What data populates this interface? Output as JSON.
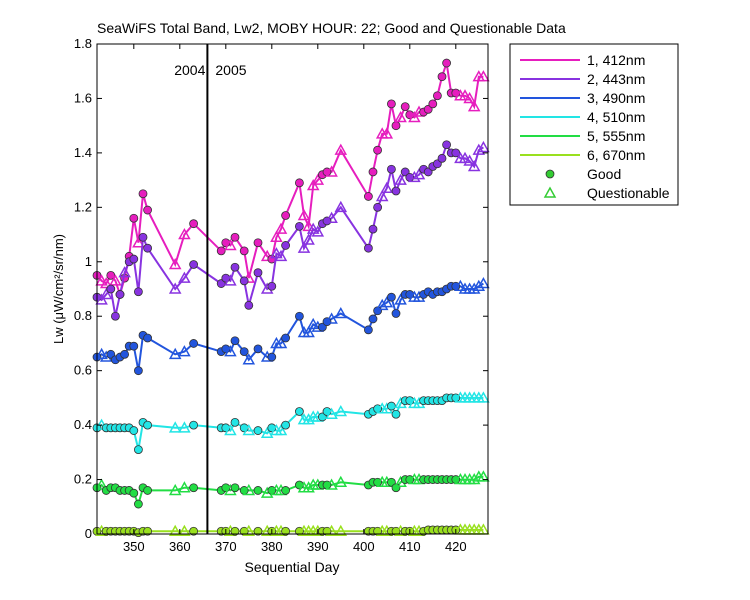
{
  "chart_data": {
    "type": "line",
    "title": "SeaWiFS Total Band,  Lw2, MOBY HOUR: 22;  Good and Questionable Data",
    "xlabel": "Sequential Day",
    "ylabel": "Lw (μW/cm²/sr/nm)",
    "xlim": [
      342,
      427
    ],
    "ylim": [
      0,
      1.8
    ],
    "xticks": [
      350,
      360,
      370,
      380,
      390,
      400,
      410,
      420
    ],
    "yticks": [
      0,
      0.2,
      0.4,
      0.6,
      0.8,
      1,
      1.2,
      1.4,
      1.6,
      1.8
    ],
    "ytick_labels": [
      "0",
      "0.2",
      "0.4",
      "0.6",
      "0.8",
      "1",
      "1.2",
      "1.4",
      "1.6",
      "1.8"
    ],
    "year_divider": {
      "x": 366,
      "left_label": "2004",
      "right_label": "2005"
    },
    "grid": false,
    "legend_position": "outside-right",
    "legend_markers": [
      {
        "label": "Good",
        "marker": "circle",
        "color": "#33cc33"
      },
      {
        "label": "Questionable",
        "marker": "triangle",
        "color": "#33cc33"
      }
    ],
    "series": [
      {
        "name": "1, 412nm",
        "color": "#e61ebe",
        "x": [
          342,
          343,
          344,
          345,
          346,
          347,
          348,
          349,
          350,
          351,
          352,
          353,
          359,
          361,
          363,
          369,
          370,
          371,
          372,
          374,
          375,
          377,
          379,
          380,
          381,
          382,
          383,
          386,
          387,
          388,
          389,
          390,
          391,
          392,
          393,
          395,
          401,
          402,
          403,
          404,
          405,
          406,
          407,
          408,
          409,
          410,
          411,
          412,
          413,
          414,
          415,
          416,
          417,
          418,
          419,
          420,
          421,
          422,
          423,
          424,
          425,
          426
        ],
        "y": [
          0.95,
          0.93,
          0.92,
          0.95,
          0.93,
          0.88,
          0.94,
          1.02,
          1.16,
          1.07,
          1.25,
          1.19,
          0.99,
          1.1,
          1.14,
          1.04,
          1.07,
          1.06,
          1.09,
          1.04,
          0.94,
          1.07,
          1.02,
          1.01,
          1.09,
          1.12,
          1.17,
          1.29,
          1.17,
          1.13,
          1.28,
          1.3,
          1.32,
          1.33,
          1.33,
          1.41,
          1.24,
          1.33,
          1.41,
          1.47,
          1.47,
          1.58,
          1.5,
          1.53,
          1.57,
          1.54,
          1.53,
          1.55,
          1.55,
          1.56,
          1.58,
          1.61,
          1.68,
          1.73,
          1.62,
          1.62,
          1.61,
          1.61,
          1.6,
          1.57,
          1.68,
          1.68
        ],
        "good": [
          true,
          false,
          false,
          true,
          false,
          true,
          true,
          true,
          true,
          false,
          true,
          true,
          false,
          false,
          true,
          true,
          true,
          false,
          true,
          true,
          false,
          true,
          false,
          true,
          false,
          false,
          true,
          true,
          false,
          false,
          false,
          false,
          true,
          true,
          false,
          false,
          true,
          true,
          true,
          false,
          false,
          true,
          true,
          false,
          true,
          true,
          false,
          false,
          true,
          true,
          true,
          true,
          true,
          true,
          true,
          true,
          false,
          false,
          false,
          false,
          false,
          false
        ]
      },
      {
        "name": "2, 443nm",
        "color": "#8833e0",
        "x": [
          342,
          343,
          344,
          345,
          346,
          347,
          348,
          349,
          350,
          351,
          352,
          353,
          359,
          361,
          363,
          369,
          370,
          371,
          372,
          374,
          375,
          377,
          379,
          380,
          381,
          382,
          383,
          386,
          387,
          388,
          389,
          390,
          391,
          392,
          393,
          395,
          401,
          402,
          403,
          404,
          405,
          406,
          407,
          408,
          409,
          410,
          411,
          412,
          413,
          414,
          415,
          416,
          417,
          418,
          419,
          420,
          421,
          422,
          423,
          424,
          425,
          426
        ],
        "y": [
          0.87,
          0.86,
          0.88,
          0.9,
          0.8,
          0.88,
          0.96,
          1.0,
          1.01,
          0.89,
          1.09,
          1.05,
          0.9,
          0.94,
          0.99,
          0.92,
          0.94,
          0.93,
          0.98,
          0.93,
          0.84,
          0.96,
          0.9,
          0.91,
          1.03,
          1.02,
          1.06,
          1.13,
          1.05,
          1.08,
          1.12,
          1.11,
          1.14,
          1.15,
          1.16,
          1.2,
          1.05,
          1.12,
          1.2,
          1.24,
          1.27,
          1.34,
          1.26,
          1.3,
          1.33,
          1.31,
          1.31,
          1.32,
          1.34,
          1.33,
          1.35,
          1.36,
          1.38,
          1.43,
          1.4,
          1.4,
          1.38,
          1.38,
          1.37,
          1.35,
          1.41,
          1.42
        ],
        "good": [
          true,
          false,
          false,
          true,
          true,
          true,
          false,
          true,
          true,
          true,
          true,
          true,
          false,
          false,
          true,
          true,
          true,
          false,
          true,
          true,
          true,
          true,
          false,
          true,
          false,
          false,
          true,
          true,
          false,
          false,
          false,
          false,
          true,
          true,
          false,
          false,
          true,
          true,
          true,
          false,
          false,
          true,
          true,
          false,
          true,
          true,
          false,
          false,
          true,
          true,
          true,
          true,
          true,
          true,
          true,
          true,
          false,
          false,
          false,
          false,
          false,
          false
        ]
      },
      {
        "name": "3, 490nm",
        "color": "#2255dd",
        "x": [
          342,
          343,
          344,
          345,
          346,
          347,
          348,
          349,
          350,
          351,
          352,
          353,
          359,
          361,
          363,
          369,
          370,
          371,
          372,
          374,
          375,
          377,
          379,
          380,
          381,
          382,
          383,
          386,
          387,
          388,
          389,
          390,
          391,
          392,
          393,
          395,
          401,
          402,
          403,
          404,
          405,
          406,
          407,
          408,
          409,
          410,
          411,
          412,
          413,
          414,
          415,
          416,
          417,
          418,
          419,
          420,
          421,
          422,
          423,
          424,
          425,
          426
        ],
        "y": [
          0.65,
          0.66,
          0.65,
          0.66,
          0.64,
          0.65,
          0.66,
          0.69,
          0.69,
          0.6,
          0.73,
          0.72,
          0.66,
          0.67,
          0.7,
          0.67,
          0.68,
          0.67,
          0.71,
          0.67,
          0.64,
          0.68,
          0.65,
          0.65,
          0.7,
          0.7,
          0.72,
          0.8,
          0.74,
          0.74,
          0.77,
          0.76,
          0.76,
          0.78,
          0.79,
          0.81,
          0.75,
          0.79,
          0.82,
          0.84,
          0.85,
          0.87,
          0.81,
          0.86,
          0.88,
          0.88,
          0.87,
          0.87,
          0.88,
          0.89,
          0.88,
          0.89,
          0.89,
          0.9,
          0.91,
          0.91,
          0.91,
          0.9,
          0.9,
          0.9,
          0.91,
          0.92
        ],
        "good": [
          true,
          false,
          false,
          true,
          true,
          true,
          true,
          true,
          true,
          true,
          true,
          true,
          false,
          false,
          true,
          true,
          true,
          false,
          true,
          true,
          false,
          true,
          false,
          true,
          false,
          false,
          true,
          true,
          false,
          false,
          false,
          false,
          true,
          true,
          false,
          false,
          true,
          true,
          true,
          false,
          false,
          true,
          true,
          false,
          true,
          true,
          false,
          false,
          true,
          true,
          true,
          true,
          true,
          true,
          true,
          true,
          false,
          false,
          false,
          false,
          false,
          false
        ]
      },
      {
        "name": "4, 510nm",
        "color": "#22e5e5",
        "x": [
          342,
          343,
          344,
          345,
          346,
          347,
          348,
          349,
          350,
          351,
          352,
          353,
          359,
          361,
          363,
          369,
          370,
          371,
          372,
          374,
          375,
          377,
          379,
          380,
          381,
          382,
          383,
          386,
          387,
          388,
          389,
          390,
          391,
          392,
          393,
          395,
          401,
          402,
          403,
          404,
          405,
          406,
          407,
          408,
          409,
          410,
          411,
          412,
          413,
          414,
          415,
          416,
          417,
          418,
          419,
          420,
          421,
          422,
          423,
          424,
          425,
          426
        ],
        "y": [
          0.39,
          0.4,
          0.39,
          0.39,
          0.39,
          0.39,
          0.39,
          0.39,
          0.38,
          0.31,
          0.41,
          0.4,
          0.39,
          0.39,
          0.4,
          0.39,
          0.39,
          0.38,
          0.41,
          0.39,
          0.38,
          0.38,
          0.37,
          0.39,
          0.38,
          0.38,
          0.4,
          0.45,
          0.42,
          0.42,
          0.43,
          0.43,
          0.43,
          0.45,
          0.44,
          0.45,
          0.44,
          0.45,
          0.46,
          0.46,
          0.46,
          0.47,
          0.44,
          0.48,
          0.49,
          0.49,
          0.48,
          0.48,
          0.49,
          0.49,
          0.49,
          0.49,
          0.49,
          0.5,
          0.5,
          0.5,
          0.5,
          0.5,
          0.5,
          0.5,
          0.5,
          0.5
        ],
        "good": [
          true,
          false,
          true,
          true,
          true,
          true,
          true,
          true,
          true,
          true,
          true,
          true,
          false,
          false,
          true,
          true,
          true,
          false,
          true,
          true,
          false,
          true,
          false,
          true,
          false,
          false,
          true,
          true,
          false,
          false,
          false,
          false,
          true,
          true,
          false,
          false,
          true,
          true,
          true,
          false,
          false,
          true,
          true,
          false,
          true,
          true,
          false,
          false,
          true,
          true,
          true,
          true,
          true,
          true,
          true,
          true,
          false,
          false,
          false,
          false,
          false,
          false
        ]
      },
      {
        "name": "5, 555nm",
        "color": "#22dd44",
        "x": [
          342,
          343,
          344,
          345,
          346,
          347,
          348,
          349,
          350,
          351,
          352,
          353,
          359,
          361,
          363,
          369,
          370,
          371,
          372,
          374,
          375,
          377,
          379,
          380,
          381,
          382,
          383,
          386,
          387,
          388,
          389,
          390,
          391,
          392,
          393,
          395,
          401,
          402,
          403,
          404,
          405,
          406,
          407,
          408,
          409,
          410,
          411,
          412,
          413,
          414,
          415,
          416,
          417,
          418,
          419,
          420,
          421,
          422,
          423,
          424,
          425,
          426
        ],
        "y": [
          0.17,
          0.18,
          0.16,
          0.17,
          0.17,
          0.16,
          0.16,
          0.16,
          0.15,
          0.11,
          0.17,
          0.16,
          0.16,
          0.17,
          0.17,
          0.16,
          0.17,
          0.16,
          0.17,
          0.16,
          0.16,
          0.16,
          0.15,
          0.16,
          0.16,
          0.16,
          0.16,
          0.18,
          0.17,
          0.17,
          0.18,
          0.18,
          0.18,
          0.18,
          0.18,
          0.19,
          0.18,
          0.19,
          0.19,
          0.19,
          0.19,
          0.19,
          0.17,
          0.19,
          0.2,
          0.2,
          0.2,
          0.2,
          0.2,
          0.2,
          0.2,
          0.2,
          0.2,
          0.2,
          0.2,
          0.2,
          0.2,
          0.2,
          0.2,
          0.2,
          0.21,
          0.21
        ],
        "good": [
          true,
          false,
          true,
          true,
          true,
          true,
          true,
          true,
          true,
          true,
          true,
          true,
          false,
          false,
          true,
          true,
          true,
          false,
          true,
          true,
          false,
          true,
          false,
          true,
          false,
          false,
          true,
          true,
          false,
          false,
          false,
          false,
          true,
          true,
          false,
          false,
          true,
          true,
          true,
          false,
          false,
          true,
          true,
          false,
          true,
          true,
          false,
          false,
          true,
          true,
          true,
          true,
          true,
          true,
          true,
          true,
          false,
          false,
          false,
          false,
          false,
          false
        ]
      },
      {
        "name": "6, 670nm",
        "color": "#99e01e",
        "x": [
          342,
          343,
          344,
          345,
          346,
          347,
          348,
          349,
          350,
          351,
          352,
          353,
          359,
          361,
          363,
          369,
          370,
          371,
          372,
          374,
          375,
          377,
          379,
          380,
          381,
          382,
          383,
          386,
          387,
          388,
          389,
          390,
          391,
          392,
          393,
          395,
          401,
          402,
          403,
          404,
          405,
          406,
          407,
          408,
          409,
          410,
          411,
          412,
          413,
          414,
          415,
          416,
          417,
          418,
          419,
          420,
          421,
          422,
          423,
          424,
          425,
          426
        ],
        "y": [
          0.01,
          0.01,
          0.01,
          0.01,
          0.01,
          0.01,
          0.01,
          0.01,
          0.01,
          0.005,
          0.01,
          0.01,
          0.01,
          0.01,
          0.01,
          0.01,
          0.01,
          0.01,
          0.01,
          0.01,
          0.01,
          0.01,
          0.01,
          0.01,
          0.01,
          0.01,
          0.01,
          0.01,
          0.01,
          0.01,
          0.01,
          0.01,
          0.01,
          0.01,
          0.01,
          0.01,
          0.01,
          0.01,
          0.01,
          0.01,
          0.01,
          0.01,
          0.01,
          0.01,
          0.01,
          0.01,
          0.01,
          0.01,
          0.01,
          0.015,
          0.015,
          0.015,
          0.015,
          0.015,
          0.015,
          0.015,
          0.015,
          0.015,
          0.015,
          0.015,
          0.015,
          0.015
        ],
        "good": [
          true,
          false,
          true,
          true,
          true,
          true,
          true,
          true,
          true,
          true,
          true,
          true,
          false,
          false,
          true,
          true,
          true,
          false,
          true,
          true,
          false,
          true,
          false,
          true,
          false,
          false,
          true,
          true,
          false,
          false,
          false,
          false,
          true,
          true,
          false,
          false,
          true,
          true,
          true,
          false,
          false,
          true,
          true,
          false,
          true,
          true,
          false,
          false,
          true,
          true,
          true,
          true,
          true,
          true,
          true,
          true,
          false,
          false,
          false,
          false,
          false,
          false
        ]
      }
    ]
  }
}
